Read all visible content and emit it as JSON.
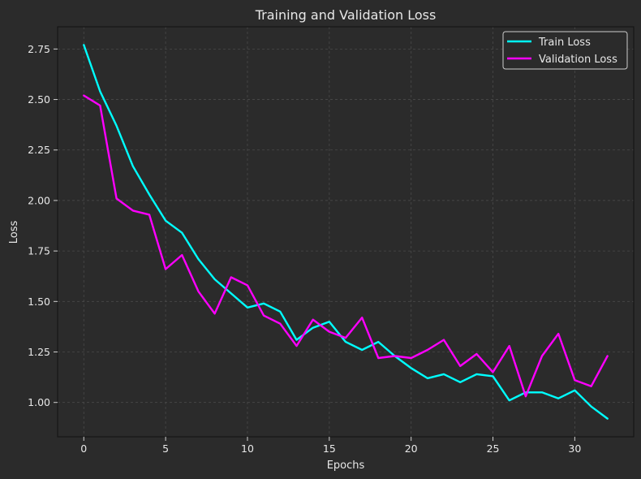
{
  "chart_data": {
    "type": "line",
    "title": "Training and Validation Loss",
    "xlabel": "Epochs",
    "ylabel": "Loss",
    "xlim": [
      -1.6,
      33.6
    ],
    "ylim": [
      0.83,
      2.86
    ],
    "xticks": [
      0,
      5,
      10,
      15,
      20,
      25,
      30
    ],
    "yticks": [
      "1.00",
      "1.25",
      "1.50",
      "1.75",
      "2.00",
      "2.25",
      "2.50",
      "2.75"
    ],
    "grid": true,
    "legend_position": "top-right",
    "x": [
      0,
      1,
      2,
      3,
      4,
      5,
      6,
      7,
      8,
      9,
      10,
      11,
      12,
      13,
      14,
      15,
      16,
      17,
      18,
      19,
      20,
      21,
      22,
      23,
      24,
      25,
      26,
      27,
      28,
      29,
      30,
      31,
      32
    ],
    "series": [
      {
        "name": "Train Loss",
        "color": "#00ffff",
        "values": [
          2.77,
          2.54,
          2.37,
          2.17,
          2.03,
          1.9,
          1.84,
          1.71,
          1.61,
          1.54,
          1.47,
          1.49,
          1.45,
          1.31,
          1.37,
          1.4,
          1.3,
          1.26,
          1.3,
          1.23,
          1.17,
          1.12,
          1.14,
          1.1,
          1.14,
          1.13,
          1.01,
          1.05,
          1.05,
          1.02,
          1.06,
          0.98,
          0.92
        ]
      },
      {
        "name": "Validation Loss",
        "color": "#ff00ff",
        "values": [
          2.52,
          2.47,
          2.01,
          1.95,
          1.93,
          1.66,
          1.73,
          1.55,
          1.44,
          1.62,
          1.58,
          1.43,
          1.39,
          1.28,
          1.41,
          1.35,
          1.32,
          1.42,
          1.22,
          1.23,
          1.22,
          1.26,
          1.31,
          1.18,
          1.24,
          1.15,
          1.28,
          1.03,
          1.23,
          1.34,
          1.11,
          1.08,
          1.23
        ]
      }
    ]
  },
  "colors": {
    "background": "#2b2b2b",
    "text": "#e8e8e8"
  }
}
